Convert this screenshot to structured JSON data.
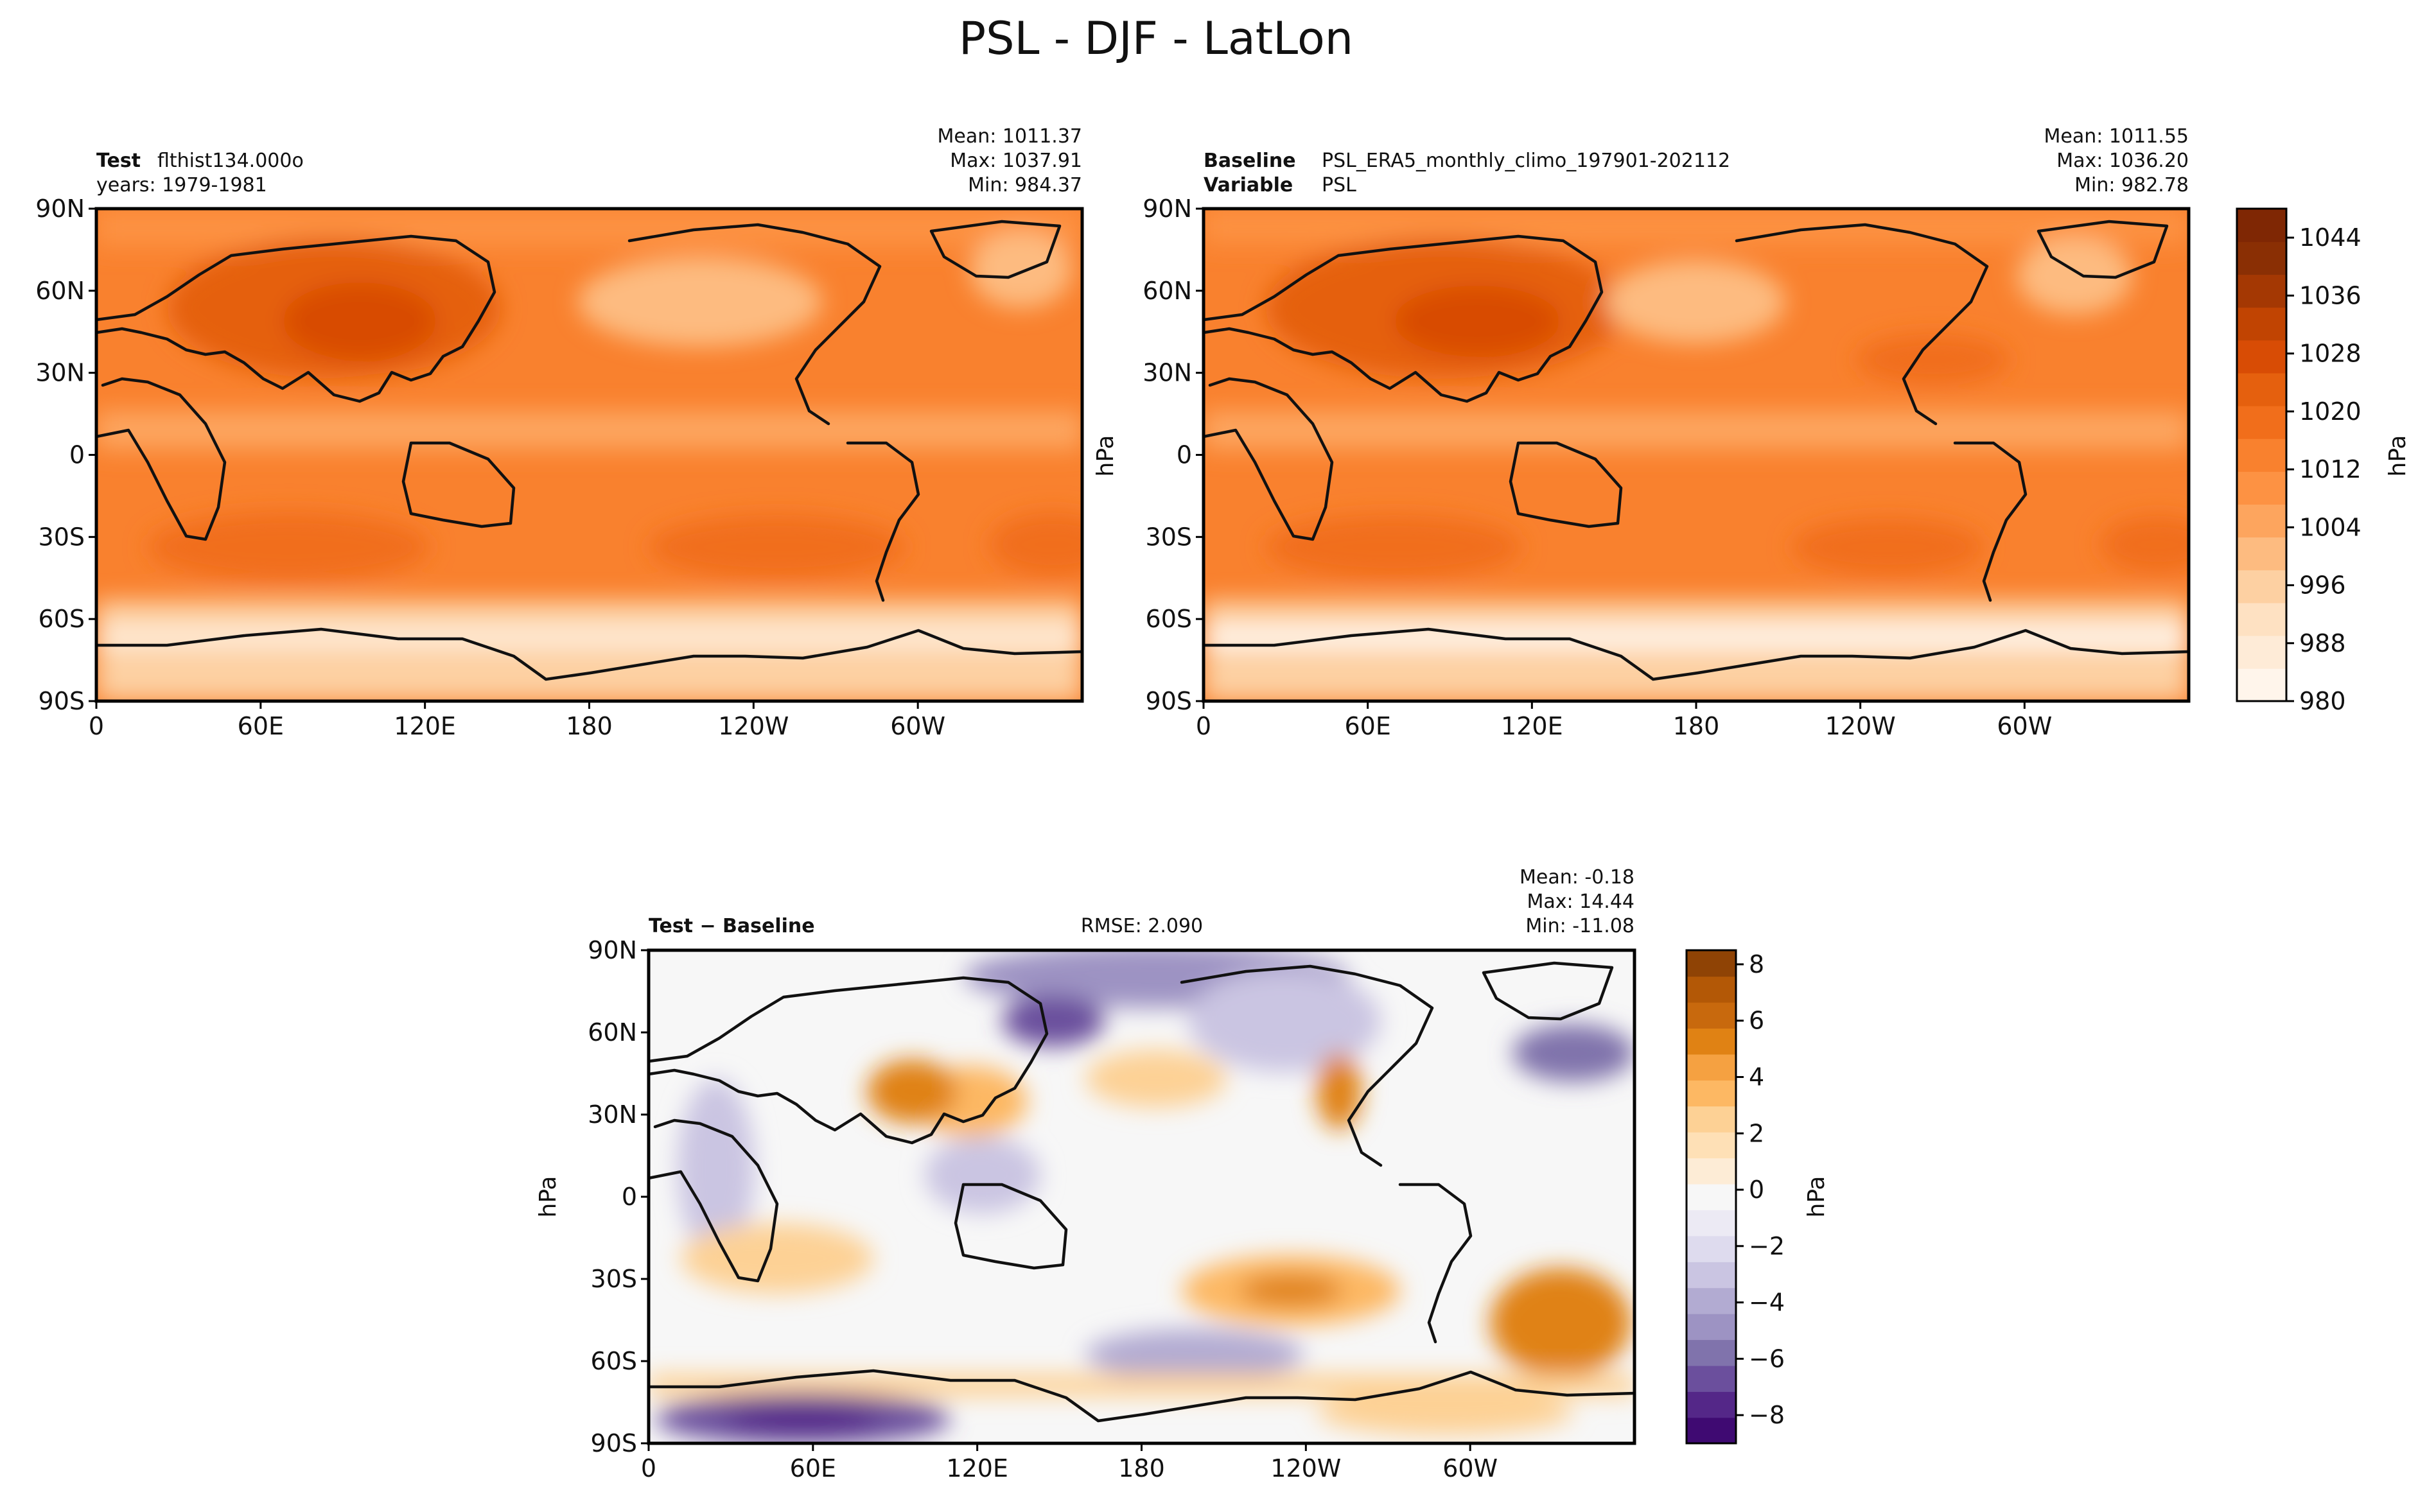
{
  "figure_title": "PSL - DJF - LatLon",
  "icons": [
    "coastline-outline"
  ],
  "colors": {
    "orange_scale": [
      "#fff5eb",
      "#feebd7",
      "#fee1c2",
      "#fdd0a2",
      "#fdbb80",
      "#fda55e",
      "#fd9243",
      "#f9812e",
      "#f16e1b",
      "#e5600e",
      "#d84c05",
      "#c14402",
      "#a43803",
      "#8a2f04",
      "#7f2704"
    ],
    "diff_scale": [
      "#3f0a72",
      "#542788",
      "#6b4f9d",
      "#8073ac",
      "#9d93c3",
      "#b2abd2",
      "#cac5e2",
      "#dedbee",
      "#eceaf4",
      "#f7f7f7",
      "#fdecd6",
      "#fee0b6",
      "#fdd195",
      "#fdb863",
      "#f5a141",
      "#e08214",
      "#c8690d",
      "#b35806",
      "#8f4305"
    ]
  },
  "chart_data": [
    {
      "type": "heatmap",
      "panel": "test",
      "label_bold": "Test",
      "label_text": "flthist134.000o",
      "sub_text": "years: 1979-1981",
      "stats": {
        "mean": "Mean: 1011.37",
        "max": "Max: 1037.91",
        "min": "Min: 984.37"
      },
      "x_ticks": [
        "0",
        "60E",
        "120E",
        "180",
        "120W",
        "60W"
      ],
      "x_tick_values": [
        0,
        60,
        120,
        180,
        240,
        300
      ],
      "y_ticks": [
        "90N",
        "60N",
        "30N",
        "0",
        "30S",
        "60S",
        "90S"
      ],
      "y_tick_values": [
        90,
        60,
        30,
        0,
        -30,
        -60,
        -90
      ],
      "xlim": [
        0,
        360
      ],
      "ylim": [
        -90,
        90
      ],
      "units": "hPa",
      "color_scale": "orange"
    },
    {
      "type": "heatmap",
      "panel": "baseline",
      "label_bold": "Baseline",
      "label_text": "PSL_ERA5_monthly_climo_197901-202112",
      "sub_bold": "Variable",
      "sub_text": "PSL",
      "stats": {
        "mean": "Mean: 1011.55",
        "max": "Max: 1036.20",
        "min": "Min: 982.78"
      },
      "ylabel": "hPa",
      "x_ticks": [
        "0",
        "60E",
        "120E",
        "180",
        "120W",
        "60W"
      ],
      "x_tick_values": [
        0,
        60,
        120,
        180,
        240,
        300
      ],
      "y_ticks": [
        "90N",
        "60N",
        "30N",
        "0",
        "30S",
        "60S",
        "90S"
      ],
      "y_tick_values": [
        90,
        60,
        30,
        0,
        -30,
        -60,
        -90
      ],
      "xlim": [
        0,
        360
      ],
      "ylim": [
        -90,
        90
      ],
      "units": "hPa",
      "color_scale": "orange",
      "colorbar": {
        "label": "hPa",
        "range": [
          980,
          1048
        ],
        "ticks": [
          "980",
          "988",
          "996",
          "1004",
          "1012",
          "1020",
          "1028",
          "1036",
          "1044"
        ],
        "tick_values": [
          980,
          988,
          996,
          1004,
          1012,
          1020,
          1028,
          1036,
          1044
        ]
      }
    },
    {
      "type": "heatmap",
      "panel": "difference",
      "label_bold": "Test − Baseline",
      "center_text": "RMSE: 2.090",
      "stats": {
        "mean": "Mean: -0.18",
        "max": "Max: 14.44",
        "min": "Min: -11.08"
      },
      "ylabel": "hPa",
      "x_ticks": [
        "0",
        "60E",
        "120E",
        "180",
        "120W",
        "60W"
      ],
      "x_tick_values": [
        0,
        60,
        120,
        180,
        240,
        300
      ],
      "y_ticks": [
        "90N",
        "60N",
        "30N",
        "0",
        "30S",
        "60S",
        "90S"
      ],
      "y_tick_values": [
        90,
        60,
        30,
        0,
        -30,
        -60,
        -90
      ],
      "xlim": [
        0,
        360
      ],
      "ylim": [
        -90,
        90
      ],
      "units": "hPa",
      "color_scale": "diff",
      "colorbar": {
        "label": "hPa",
        "range": [
          -9,
          8.5
        ],
        "ticks": [
          "−8",
          "−6",
          "−4",
          "−2",
          "0",
          "2",
          "4",
          "6",
          "8"
        ],
        "tick_values": [
          -8,
          -6,
          -4,
          -2,
          0,
          2,
          4,
          6,
          8
        ]
      }
    }
  ]
}
